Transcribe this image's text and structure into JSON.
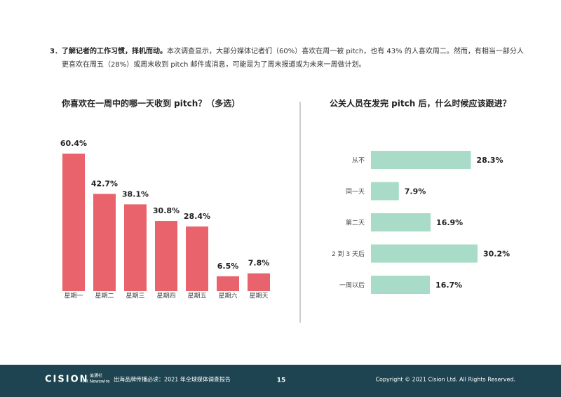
{
  "paragraph": {
    "lead": "3．了解记者的工作习惯，择机而动。",
    "body": "本次调查显示，大部分媒体记者们（60%）喜欢在周一被 pitch，也有 43% 的人喜欢周二。然而，有相当一部分人更喜欢在周五（28%）或周末收到 pitch 邮件或消息，可能是为了周末报道或为未来一周做计划。"
  },
  "chart_data": [
    {
      "type": "bar",
      "title": "你喜欢在一周中的哪一天收到 pitch？（多选）",
      "color": "#e8636b",
      "categories": [
        "星期一",
        "星期二",
        "星期三",
        "星期四",
        "星期五",
        "星期六",
        "星期天"
      ],
      "values": [
        60.4,
        42.7,
        38.1,
        30.8,
        28.4,
        6.5,
        7.8
      ],
      "value_labels": [
        "60.4%",
        "42.7%",
        "38.1%",
        "30.8%",
        "28.4%",
        "6.5%",
        "7.8%"
      ]
    },
    {
      "type": "barh",
      "title": "公关人员在发完 pitch 后，什么时候应该跟进？",
      "color": "#a8dcc9",
      "categories": [
        "从不",
        "同一天",
        "第二天",
        "2 到 3 天后",
        "一周以后"
      ],
      "values": [
        28.3,
        7.9,
        16.9,
        30.2,
        16.7
      ],
      "value_labels": [
        "28.3%",
        "7.9%",
        "16.9%",
        "30.2%",
        "16.7%"
      ]
    }
  ],
  "footer": {
    "logo": "CISION",
    "partner_cn": "美通社",
    "partner": "PR Newswire",
    "report": "出海品牌传播必读：2021 年全球媒体调查报告",
    "page": "15",
    "copyright": "Copyright © 2021 Cision Ltd. All Rights Reserved."
  }
}
